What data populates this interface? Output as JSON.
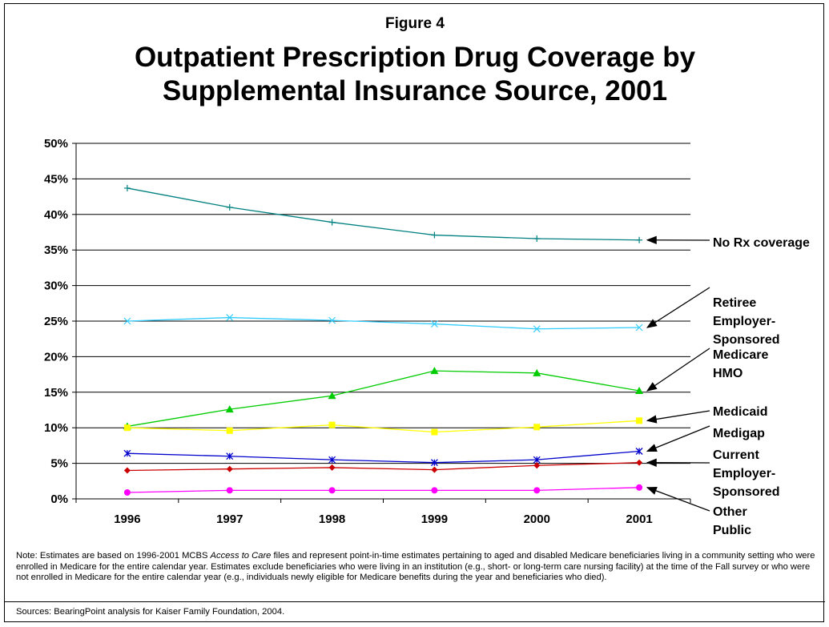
{
  "figure_label": "Figure 4",
  "title_line1": "Outpatient Prescription Drug Coverage by",
  "title_line2": "Supplemental Insurance Source, 2001",
  "note": {
    "prefix": "Note: Estimates are based on 1996-2001 MCBS ",
    "italic": "Access to Care",
    "suffix": " files and represent point-in-time estimates pertaining to aged and disabled Medicare beneficiaries living in a community setting who were enrolled in Medicare for the entire calendar year.  Estimates exclude beneficiaries who were living in an institution (e.g., short- or long-term care nursing facility) at the time of the Fall survey or who were not enrolled in Medicare for the entire calendar year (e.g., individuals newly eligible for Medicare benefits during the year and beneficiaries who died)."
  },
  "sources": "Sources: BearingPoint analysis for Kaiser Family Foundation, 2004.",
  "chart_data": {
    "type": "line",
    "x": [
      "1996",
      "1997",
      "1998",
      "1999",
      "2000",
      "2001"
    ],
    "ylim": [
      0,
      50
    ],
    "yticks": [
      0,
      5,
      10,
      15,
      20,
      25,
      30,
      35,
      40,
      45,
      50
    ],
    "ytick_labels": [
      "0%",
      "5%",
      "10%",
      "15%",
      "20%",
      "25%",
      "30%",
      "35%",
      "40%",
      "45%",
      "50%"
    ],
    "grid": true,
    "series": [
      {
        "name": "No Rx coverage",
        "label_lines": [
          "No Rx coverage"
        ],
        "color": "#008080",
        "marker": "plus",
        "values": [
          43.7,
          41.0,
          38.9,
          37.1,
          36.6,
          36.4
        ]
      },
      {
        "name": "Retiree Employer-Sponsored",
        "label_lines": [
          "Retiree",
          "Employer-",
          "Sponsored"
        ],
        "color": "#33ccff",
        "marker": "x",
        "values": [
          25.0,
          25.5,
          25.1,
          24.6,
          23.9,
          24.1
        ]
      },
      {
        "name": "Medicare HMO",
        "label_lines": [
          "Medicare",
          "HMO"
        ],
        "color": "#00cc00",
        "marker": "triangle",
        "values": [
          10.2,
          12.6,
          14.5,
          18.0,
          17.7,
          15.2
        ]
      },
      {
        "name": "Medicaid",
        "label_lines": [
          "Medicaid"
        ],
        "color": "#ffff00",
        "marker": "square",
        "values": [
          10.0,
          9.6,
          10.4,
          9.4,
          10.1,
          11.0
        ]
      },
      {
        "name": "Medigap",
        "label_lines": [
          "Medigap"
        ],
        "color": "#0000cc",
        "marker": "asterisk",
        "values": [
          6.4,
          6.0,
          5.5,
          5.1,
          5.5,
          6.7
        ]
      },
      {
        "name": "Current Employer-Sponsored",
        "label_lines": [
          "Current",
          "Employer-",
          "Sponsored"
        ],
        "color": "#cc0000",
        "marker": "diamond",
        "values": [
          4.0,
          4.2,
          4.4,
          4.1,
          4.7,
          5.1
        ]
      },
      {
        "name": "Other Public",
        "label_lines": [
          "Other",
          "Public"
        ],
        "color": "#ff00ff",
        "marker": "circle",
        "values": [
          0.9,
          1.2,
          1.2,
          1.2,
          1.2,
          1.6
        ]
      }
    ]
  }
}
